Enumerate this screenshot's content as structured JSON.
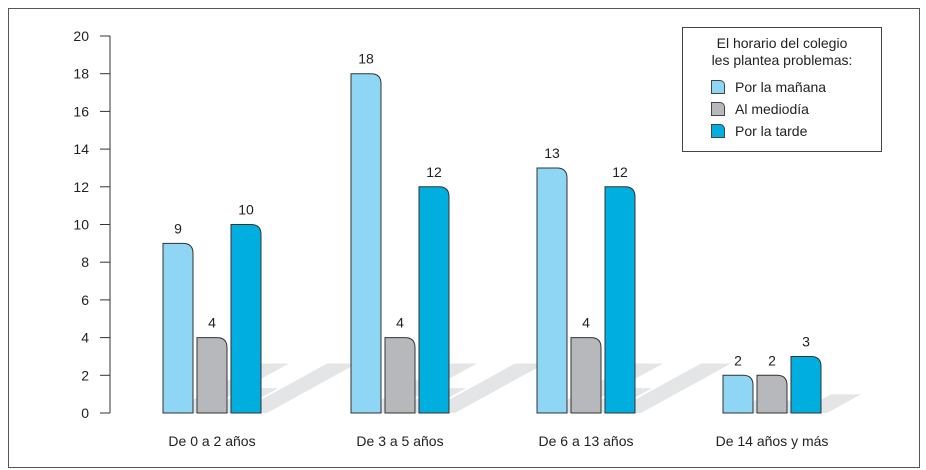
{
  "chart_data": {
    "type": "bar",
    "categories": [
      "De 0 a 2 años",
      "De 3 a 5 años",
      "De 6 a 13 años",
      "De 14 años y más"
    ],
    "series": [
      {
        "name": "Por la mañana",
        "values": [
          9,
          18,
          13,
          2
        ],
        "color": "#8fd6f4"
      },
      {
        "name": "Al mediodía",
        "values": [
          4,
          4,
          4,
          2
        ],
        "color": "#b6b8bb"
      },
      {
        "name": "Por la tarde",
        "values": [
          10,
          12,
          12,
          3
        ],
        "color": "#00aee0"
      }
    ],
    "ylim": [
      0,
      20
    ],
    "yticks": [
      0,
      2,
      4,
      6,
      8,
      10,
      12,
      14,
      16,
      18,
      20
    ],
    "legend": {
      "title_line1": "El horario del colegio",
      "title_line2": "les plantea problemas:",
      "placement": "top-right"
    }
  }
}
